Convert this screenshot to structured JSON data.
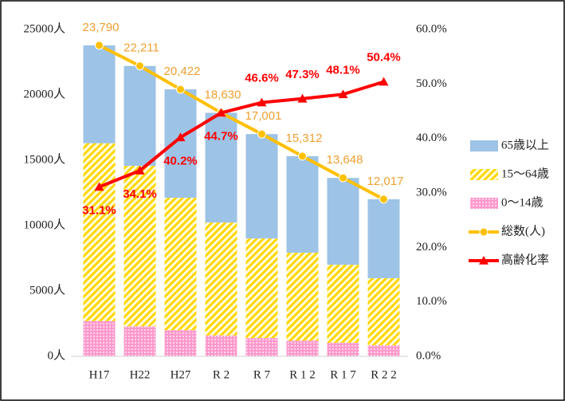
{
  "chart_data": {
    "type": "bar",
    "stacked": true,
    "categories": [
      "H17",
      "H22",
      "H27",
      "R 2",
      "R 7",
      "R 1 2",
      "R 1 7",
      "R 2 2"
    ],
    "series": [
      {
        "name": "0～14歳",
        "color": "#ff99cc",
        "pattern": "dots",
        "values": [
          2700,
          2300,
          2000,
          1600,
          1400,
          1200,
          1040,
          850
        ]
      },
      {
        "name": "15～64歳",
        "color": "#ffd700",
        "pattern": "hatch",
        "values": [
          13600,
          12270,
          10130,
          8640,
          7620,
          6730,
          5970,
          5130
        ]
      },
      {
        "name": "65歳以上",
        "color": "#9dc3e6",
        "values": [
          7490,
          7641,
          8292,
          8390,
          7981,
          7382,
          6638,
          6037
        ]
      },
      {
        "name": "総数(人)",
        "type": "line",
        "marker": "circle",
        "color": "#ffc000",
        "values": [
          23790,
          22211,
          20422,
          18630,
          17001,
          15312,
          13648,
          12017
        ],
        "value_labels": [
          "23,790",
          "22,211",
          "20,422",
          "18,630",
          "17,001",
          "15,312",
          "13,648",
          "12,017"
        ]
      },
      {
        "name": "高齢化率",
        "type": "line",
        "marker": "triangle",
        "axis": "y2",
        "color": "#ff0000",
        "values": [
          31.1,
          34.1,
          40.2,
          44.7,
          46.6,
          47.3,
          48.1,
          50.4
        ],
        "value_labels": [
          "31.1%",
          "34.1%",
          "40.2%",
          "44.7%",
          "46.6%",
          "47.3%",
          "48.1%",
          "50.4%"
        ]
      }
    ],
    "ylim": [
      0,
      25000
    ],
    "yticks": [
      {
        "value": 0,
        "label": "0人"
      },
      {
        "value": 5000,
        "label": "5000人"
      },
      {
        "value": 10000,
        "label": "10000人"
      },
      {
        "value": 15000,
        "label": "15000人"
      },
      {
        "value": 20000,
        "label": "20000人"
      },
      {
        "value": 25000,
        "label": "25000人"
      }
    ],
    "y2lim": [
      0,
      60
    ],
    "y2ticks": [
      {
        "value": 0,
        "label": "0.0%"
      },
      {
        "value": 10,
        "label": "10.0%"
      },
      {
        "value": 20,
        "label": "20.0%"
      },
      {
        "value": 30,
        "label": "30.0%"
      },
      {
        "value": 40,
        "label": "40.0%"
      },
      {
        "value": 50,
        "label": "50.0%"
      },
      {
        "value": 60,
        "label": "60.0%"
      }
    ],
    "legend": "right",
    "grid": false
  }
}
